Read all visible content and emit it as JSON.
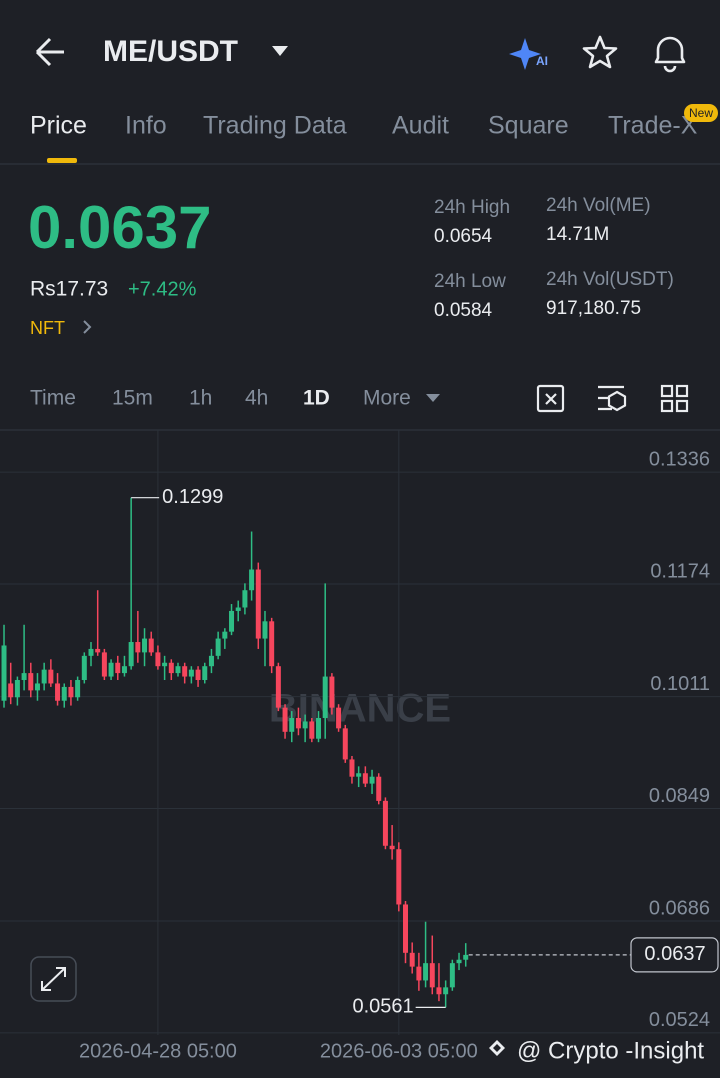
{
  "header": {
    "pair": "ME/USDT",
    "ai_badge": "AI"
  },
  "tabs": [
    "Price",
    "Info",
    "Trading Data",
    "Audit",
    "Square",
    "Trade-X"
  ],
  "new_badge": "New",
  "ticker": {
    "price": "0.0637",
    "local_price": "Rs17.73",
    "change": "+7.42%",
    "tag": "NFT"
  },
  "stats": [
    {
      "label": "24h High",
      "value": "0.0654"
    },
    {
      "label": "24h Low",
      "value": "0.0584"
    },
    {
      "label": "24h Vol(ME)",
      "value": "14.71M"
    },
    {
      "label": "24h Vol(USDT)",
      "value": "917,180.75"
    }
  ],
  "intervals": [
    "Time",
    "15m",
    "1h",
    "4h",
    "1D",
    "More"
  ],
  "watermark": "BINANCE",
  "credit": "@ Crypto -Insight",
  "chart_data": {
    "type": "candlestick",
    "up_color": "#2ebd85",
    "down_color": "#f6465d",
    "grid": true,
    "ylim": [
      0.0521,
      0.1397
    ],
    "yticks": [
      0.0524,
      0.0686,
      0.0849,
      0.1011,
      0.1174,
      0.1336
    ],
    "xlim": [
      -0.6,
      107
    ],
    "xticks": [
      {
        "value": 23,
        "label": "2026-04-28 05:00"
      },
      {
        "value": 59,
        "label": "2026-06-03 05:00"
      }
    ],
    "high_label": 0.1299,
    "low_label": 0.0561,
    "last_price": 0.0637,
    "candles": [
      [
        0.1005,
        0.1115,
        0.0995,
        0.1085
      ],
      [
        0.103,
        0.106,
        0.1,
        0.101
      ],
      [
        0.101,
        0.104,
        0.0998,
        0.1035
      ],
      [
        0.1035,
        0.1115,
        0.102,
        0.1045
      ],
      [
        0.1045,
        0.106,
        0.101,
        0.102
      ],
      [
        0.102,
        0.1045,
        0.1005,
        0.103
      ],
      [
        0.103,
        0.106,
        0.102,
        0.105
      ],
      [
        0.105,
        0.1065,
        0.1025,
        0.103
      ],
      [
        0.103,
        0.1045,
        0.0998,
        0.1005
      ],
      [
        0.1005,
        0.103,
        0.0995,
        0.1025
      ],
      [
        0.1025,
        0.1035,
        0.0998,
        0.101
      ],
      [
        0.101,
        0.104,
        0.1005,
        0.1035
      ],
      [
        0.1035,
        0.1075,
        0.103,
        0.107
      ],
      [
        0.107,
        0.109,
        0.1055,
        0.108
      ],
      [
        0.108,
        0.1165,
        0.107,
        0.1075
      ],
      [
        0.1075,
        0.108,
        0.1035,
        0.104
      ],
      [
        0.104,
        0.1065,
        0.1035,
        0.106
      ],
      [
        0.106,
        0.107,
        0.1035,
        0.1045
      ],
      [
        0.1045,
        0.107,
        0.104,
        0.1055
      ],
      [
        0.1055,
        0.1299,
        0.105,
        0.109
      ],
      [
        0.109,
        0.1135,
        0.106,
        0.1075
      ],
      [
        0.1075,
        0.111,
        0.1055,
        0.1095
      ],
      [
        0.1095,
        0.1105,
        0.107,
        0.1075
      ],
      [
        0.1075,
        0.1085,
        0.105,
        0.1055
      ],
      [
        0.1055,
        0.107,
        0.1035,
        0.106
      ],
      [
        0.106,
        0.1065,
        0.1035,
        0.1045
      ],
      [
        0.1045,
        0.106,
        0.104,
        0.1055
      ],
      [
        0.1055,
        0.106,
        0.103,
        0.104
      ],
      [
        0.104,
        0.1055,
        0.103,
        0.105
      ],
      [
        0.105,
        0.1055,
        0.1025,
        0.1035
      ],
      [
        0.1035,
        0.106,
        0.103,
        0.1055
      ],
      [
        0.1055,
        0.108,
        0.1045,
        0.107
      ],
      [
        0.107,
        0.1105,
        0.1065,
        0.1095
      ],
      [
        0.1095,
        0.111,
        0.108,
        0.1105
      ],
      [
        0.1105,
        0.1145,
        0.11,
        0.1135
      ],
      [
        0.1135,
        0.115,
        0.112,
        0.114
      ],
      [
        0.114,
        0.1175,
        0.113,
        0.1165
      ],
      [
        0.1165,
        0.125,
        0.115,
        0.1195
      ],
      [
        0.1195,
        0.1205,
        0.108,
        0.1095
      ],
      [
        0.1095,
        0.1135,
        0.1055,
        0.112
      ],
      [
        0.112,
        0.1125,
        0.1045,
        0.1055
      ],
      [
        0.1055,
        0.106,
        0.099,
        0.0995
      ],
      [
        0.0995,
        0.1,
        0.095,
        0.096
      ],
      [
        0.096,
        0.099,
        0.0945,
        0.098
      ],
      [
        0.098,
        0.0995,
        0.0955,
        0.0965
      ],
      [
        0.0965,
        0.0985,
        0.0945,
        0.0975
      ],
      [
        0.0975,
        0.098,
        0.0945,
        0.095
      ],
      [
        0.095,
        0.099,
        0.0945,
        0.098
      ],
      [
        0.098,
        0.1175,
        0.095,
        0.104
      ],
      [
        0.104,
        0.1045,
        0.0985,
        0.0995
      ],
      [
        0.0995,
        0.1,
        0.096,
        0.0965
      ],
      [
        0.0965,
        0.097,
        0.0915,
        0.092
      ],
      [
        0.092,
        0.0925,
        0.0885,
        0.0895
      ],
      [
        0.0895,
        0.091,
        0.088,
        0.09
      ],
      [
        0.09,
        0.091,
        0.088,
        0.0885
      ],
      [
        0.0885,
        0.0905,
        0.087,
        0.0895
      ],
      [
        0.0895,
        0.09,
        0.0855,
        0.086
      ],
      [
        0.086,
        0.0865,
        0.079,
        0.0795
      ],
      [
        0.0795,
        0.0825,
        0.0775,
        0.079
      ],
      [
        0.079,
        0.08,
        0.07,
        0.071
      ],
      [
        0.071,
        0.0715,
        0.0625,
        0.064
      ],
      [
        0.064,
        0.0655,
        0.061,
        0.062
      ],
      [
        0.062,
        0.064,
        0.0585,
        0.06
      ],
      [
        0.06,
        0.0685,
        0.059,
        0.0625
      ],
      [
        0.0625,
        0.0665,
        0.058,
        0.059
      ],
      [
        0.059,
        0.0625,
        0.057,
        0.058
      ],
      [
        0.058,
        0.06,
        0.0561,
        0.059
      ],
      [
        0.059,
        0.063,
        0.0585,
        0.0625
      ],
      [
        0.0625,
        0.064,
        0.0615,
        0.063
      ],
      [
        0.063,
        0.0654,
        0.062,
        0.0637
      ]
    ]
  }
}
